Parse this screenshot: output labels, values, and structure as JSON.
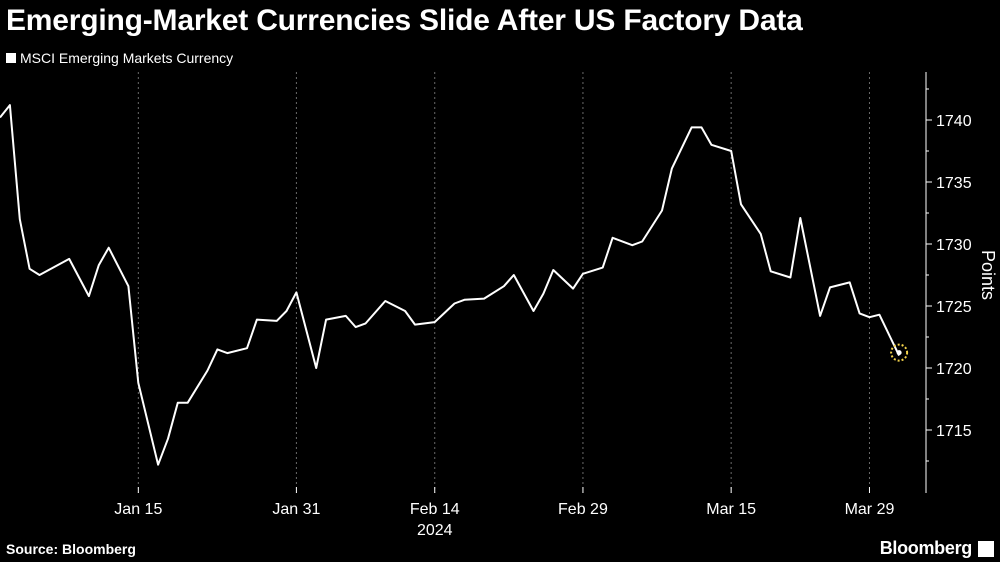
{
  "header": {
    "title": "Emerging-Market Currencies Slide After US Factory Data"
  },
  "legend": {
    "series_name": "MSCI Emerging Markets Currency"
  },
  "footer": {
    "source": "Source: Bloomberg",
    "brand": "Bloomberg"
  },
  "colors": {
    "background": "#000000",
    "line": "#ffffff",
    "marker": "#f2d24b",
    "text": "#ffffff"
  },
  "chart_data": {
    "type": "line",
    "title": "Emerging-Market Currencies Slide After US Factory Data",
    "xlabel": "",
    "ylabel": "Points",
    "year_label": "2024",
    "ylim": [
      1710,
      1743
    ],
    "yticks": [
      1715,
      1720,
      1725,
      1730,
      1735,
      1740
    ],
    "grid": "vertical dashed",
    "legend_position": "top-left",
    "x_tick_labels": [
      "Jan 15",
      "Jan 31",
      "Feb 14",
      "Feb 29",
      "Mar 15",
      "Mar 29"
    ],
    "x_ticks": [
      "2024-01-15",
      "2024-01-31",
      "2024-02-14",
      "2024-02-29",
      "2024-03-15",
      "2024-03-29"
    ],
    "series": [
      {
        "name": "MSCI Emerging Markets Currency",
        "points": [
          [
            "2024-01-01",
            1740.2
          ],
          [
            "2024-01-02",
            1741.2
          ],
          [
            "2024-01-03",
            1732.0
          ],
          [
            "2024-01-04",
            1728.0
          ],
          [
            "2024-01-05",
            1727.5
          ],
          [
            "2024-01-08",
            1728.8
          ],
          [
            "2024-01-10",
            1725.8
          ],
          [
            "2024-01-11",
            1728.3
          ],
          [
            "2024-01-12",
            1729.7
          ],
          [
            "2024-01-14",
            1726.6
          ],
          [
            "2024-01-15",
            1718.8
          ],
          [
            "2024-01-17",
            1712.2
          ],
          [
            "2024-01-18",
            1714.3
          ],
          [
            "2024-01-19",
            1717.2
          ],
          [
            "2024-01-20",
            1717.2
          ],
          [
            "2024-01-22",
            1719.8
          ],
          [
            "2024-01-23",
            1721.5
          ],
          [
            "2024-01-24",
            1721.2
          ],
          [
            "2024-01-26",
            1721.6
          ],
          [
            "2024-01-27",
            1723.9
          ],
          [
            "2024-01-29",
            1723.8
          ],
          [
            "2024-01-30",
            1724.6
          ],
          [
            "2024-01-31",
            1726.1
          ],
          [
            "2024-02-02",
            1720.0
          ],
          [
            "2024-02-03",
            1723.9
          ],
          [
            "2024-02-05",
            1724.2
          ],
          [
            "2024-02-06",
            1723.3
          ],
          [
            "2024-02-07",
            1723.6
          ],
          [
            "2024-02-09",
            1725.4
          ],
          [
            "2024-02-11",
            1724.6
          ],
          [
            "2024-02-12",
            1723.5
          ],
          [
            "2024-02-14",
            1723.7
          ],
          [
            "2024-02-16",
            1725.2
          ],
          [
            "2024-02-17",
            1725.5
          ],
          [
            "2024-02-19",
            1725.6
          ],
          [
            "2024-02-21",
            1726.6
          ],
          [
            "2024-02-22",
            1727.5
          ],
          [
            "2024-02-24",
            1724.6
          ],
          [
            "2024-02-25",
            1726.0
          ],
          [
            "2024-02-26",
            1727.9
          ],
          [
            "2024-02-28",
            1726.4
          ],
          [
            "2024-02-29",
            1727.6
          ],
          [
            "2024-03-02",
            1728.1
          ],
          [
            "2024-03-03",
            1730.5
          ],
          [
            "2024-03-05",
            1729.9
          ],
          [
            "2024-03-06",
            1730.2
          ],
          [
            "2024-03-08",
            1732.7
          ],
          [
            "2024-03-09",
            1736.1
          ],
          [
            "2024-03-11",
            1739.4
          ],
          [
            "2024-03-12",
            1739.4
          ],
          [
            "2024-03-13",
            1738.0
          ],
          [
            "2024-03-15",
            1737.5
          ],
          [
            "2024-03-16",
            1733.2
          ],
          [
            "2024-03-18",
            1730.8
          ],
          [
            "2024-03-19",
            1727.8
          ],
          [
            "2024-03-21",
            1727.3
          ],
          [
            "2024-03-22",
            1732.1
          ],
          [
            "2024-03-24",
            1724.2
          ],
          [
            "2024-03-25",
            1726.5
          ],
          [
            "2024-03-27",
            1726.9
          ],
          [
            "2024-03-28",
            1724.4
          ],
          [
            "2024-03-29",
            1724.1
          ],
          [
            "2024-03-30",
            1724.3
          ],
          [
            "2024-04-01",
            1721.0
          ]
        ]
      }
    ]
  }
}
